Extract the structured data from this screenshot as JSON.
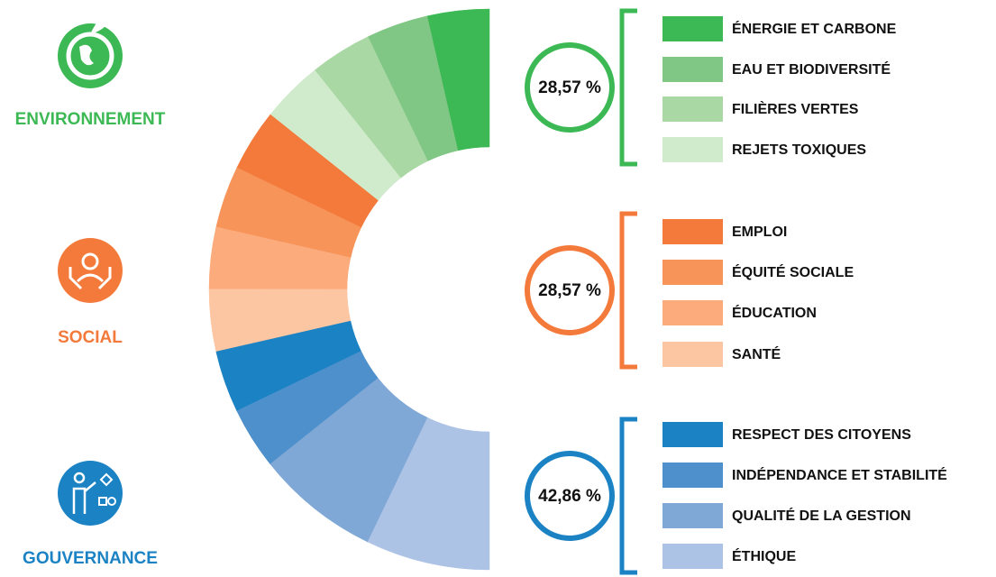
{
  "chart_data": {
    "type": "half-donut",
    "groups": [
      {
        "name": "ENVIRONNEMENT",
        "color": "#3cb954",
        "value": 28.57,
        "value_label": "28,57 %",
        "segments": [
          {
            "name": "ÉNERGIE ET CARBONE",
            "color": "#3cb954",
            "value": 7.14
          },
          {
            "name": "EAU ET BIODIVERSITÉ",
            "color": "#80c684",
            "value": 7.14
          },
          {
            "name": "FILIÈRES VERTES",
            "color": "#a9d8a5",
            "value": 7.14
          },
          {
            "name": "REJETS TOXIQUES",
            "color": "#d0ebcc",
            "value": 7.14
          }
        ]
      },
      {
        "name": "SOCIAL",
        "color": "#f47a3b",
        "value": 28.57,
        "value_label": "28,57 %",
        "segments": [
          {
            "name": "EMPLOI",
            "color": "#f47a3b",
            "value": 7.14
          },
          {
            "name": "ÉQUITÉ SOCIALE",
            "color": "#f7945a",
            "value": 7.14
          },
          {
            "name": "ÉDUCATION",
            "color": "#fbab7c",
            "value": 7.14
          },
          {
            "name": "SANTÉ",
            "color": "#fdc6a2",
            "value": 7.14
          }
        ]
      },
      {
        "name": "GOUVERNANCE",
        "color": "#1b82c4",
        "value": 42.86,
        "value_label": "42,86 %",
        "segments": [
          {
            "name": "RESPECT DES CITOYENS",
            "color": "#1b82c4",
            "value": 7.14
          },
          {
            "name": "INDÉPENDANCE ET STABILITÉ",
            "color": "#4e90cb",
            "value": 7.14
          },
          {
            "name": "QUALITÉ DE LA GESTION",
            "color": "#7fa8d6",
            "value": 14.29
          },
          {
            "name": "ÉTHIQUE",
            "color": "#adc3e6",
            "value": 14.29
          }
        ]
      }
    ]
  }
}
